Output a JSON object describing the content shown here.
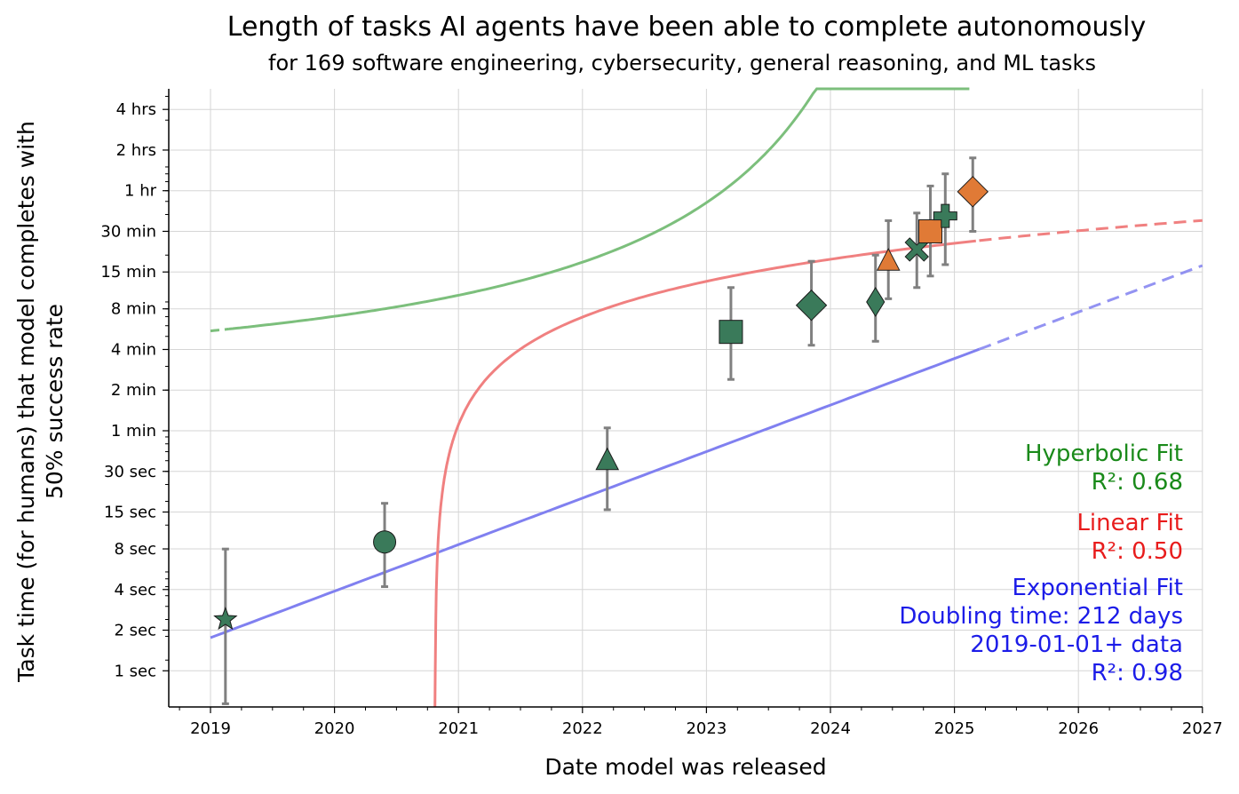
{
  "chart_data": {
    "type": "scatter",
    "title": "Length of tasks AI agents have been able to complete autonomously",
    "subtitle": "for 169 software engineering, cybersecurity, general reasoning, and ML tasks",
    "xlabel": "Date model was released",
    "ylabel_line1": "Task time (for humans) that model completes with",
    "ylabel_line2": "50% success rate",
    "x_scale": "date",
    "y_scale": "log",
    "xlim": [
      "2018-08-30",
      "2027-01-01"
    ],
    "ylim_minutes": [
      0.0095,
      330
    ],
    "grid": true,
    "x_ticks": [
      {
        "label": "2019",
        "date": "2019-01-01"
      },
      {
        "label": "2020",
        "date": "2020-01-01"
      },
      {
        "label": "2021",
        "date": "2021-01-01"
      },
      {
        "label": "2022",
        "date": "2022-01-01"
      },
      {
        "label": "2023",
        "date": "2023-01-01"
      },
      {
        "label": "2024",
        "date": "2024-01-01"
      },
      {
        "label": "2025",
        "date": "2025-01-01"
      },
      {
        "label": "2026",
        "date": "2026-01-01"
      },
      {
        "label": "2027",
        "date": "2027-01-01"
      }
    ],
    "y_ticks": [
      {
        "label": "1 sec",
        "minutes": 0.01667
      },
      {
        "label": "2 sec",
        "minutes": 0.03333
      },
      {
        "label": "4 sec",
        "minutes": 0.06667
      },
      {
        "label": "8 sec",
        "minutes": 0.1333
      },
      {
        "label": "15 sec",
        "minutes": 0.25
      },
      {
        "label": "30 sec",
        "minutes": 0.5
      },
      {
        "label": "1 min",
        "minutes": 1
      },
      {
        "label": "2 min",
        "minutes": 2
      },
      {
        "label": "4 min",
        "minutes": 4
      },
      {
        "label": "8 min",
        "minutes": 8
      },
      {
        "label": "15 min",
        "minutes": 15
      },
      {
        "label": "30 min",
        "minutes": 30
      },
      {
        "label": "1 hr",
        "minutes": 60
      },
      {
        "label": "2 hrs",
        "minutes": 120
      },
      {
        "label": "4 hrs",
        "minutes": 240
      }
    ],
    "points": [
      {
        "date": "2019-02-14",
        "minutes": 0.04,
        "err_low": 0.0095,
        "err_high": 0.133,
        "marker": "star",
        "color": "#3a7a5a"
      },
      {
        "date": "2020-05-28",
        "minutes": 0.15,
        "err_low": 0.07,
        "err_high": 0.29,
        "marker": "circle",
        "color": "#3a7a5a"
      },
      {
        "date": "2022-03-15",
        "minutes": 0.6,
        "err_low": 0.26,
        "err_high": 1.05,
        "marker": "triangle",
        "color": "#3a7a5a"
      },
      {
        "date": "2023-03-14",
        "minutes": 5.4,
        "err_low": 2.4,
        "err_high": 11.5,
        "marker": "square",
        "color": "#3a7a5a"
      },
      {
        "date": "2023-11-06",
        "minutes": 8.5,
        "err_low": 4.3,
        "err_high": 18.0,
        "marker": "diamond",
        "color": "#3a7a5a"
      },
      {
        "date": "2024-05-13",
        "minutes": 9.0,
        "err_low": 4.6,
        "err_high": 20.0,
        "marker": "thin-diamond",
        "color": "#3a7a5a"
      },
      {
        "date": "2024-06-20",
        "minutes": 18.0,
        "err_low": 9.5,
        "err_high": 36.0,
        "marker": "triangle",
        "color": "#e07a36"
      },
      {
        "date": "2024-09-12",
        "minutes": 22.0,
        "err_low": 11.5,
        "err_high": 41.0,
        "marker": "x",
        "color": "#3a7a5a"
      },
      {
        "date": "2024-10-22",
        "minutes": 30.0,
        "err_low": 14.0,
        "err_high": 65.0,
        "marker": "square",
        "color": "#e07a36"
      },
      {
        "date": "2024-12-05",
        "minutes": 39.0,
        "err_low": 17.0,
        "err_high": 80.0,
        "marker": "plus",
        "color": "#3a7a5a"
      },
      {
        "date": "2025-02-24",
        "minutes": 59.0,
        "err_low": 30.0,
        "err_high": 105.0,
        "marker": "diamond",
        "color": "#e07a36"
      }
    ],
    "fits": [
      {
        "name": "Hyperbolic Fit",
        "color": "#7cbf7c"
      },
      {
        "name": "Linear Fit",
        "color": "#f08080"
      },
      {
        "name": "Exponential Fit",
        "color": "#8080f0"
      }
    ]
  },
  "legend": {
    "hyperbolic": {
      "name": "Hyperbolic Fit",
      "r2": "R²: 0.68",
      "color": "#1a8a1a"
    },
    "linear": {
      "name": "Linear Fit",
      "r2": "R²: 0.50",
      "color": "#e81c1c"
    },
    "exponential": {
      "name": "Exponential Fit",
      "doubling": "Doubling time: 212 days",
      "data": "2019-01-01+ data",
      "r2": "R²: 0.98",
      "color": "#1c1ce8"
    }
  }
}
